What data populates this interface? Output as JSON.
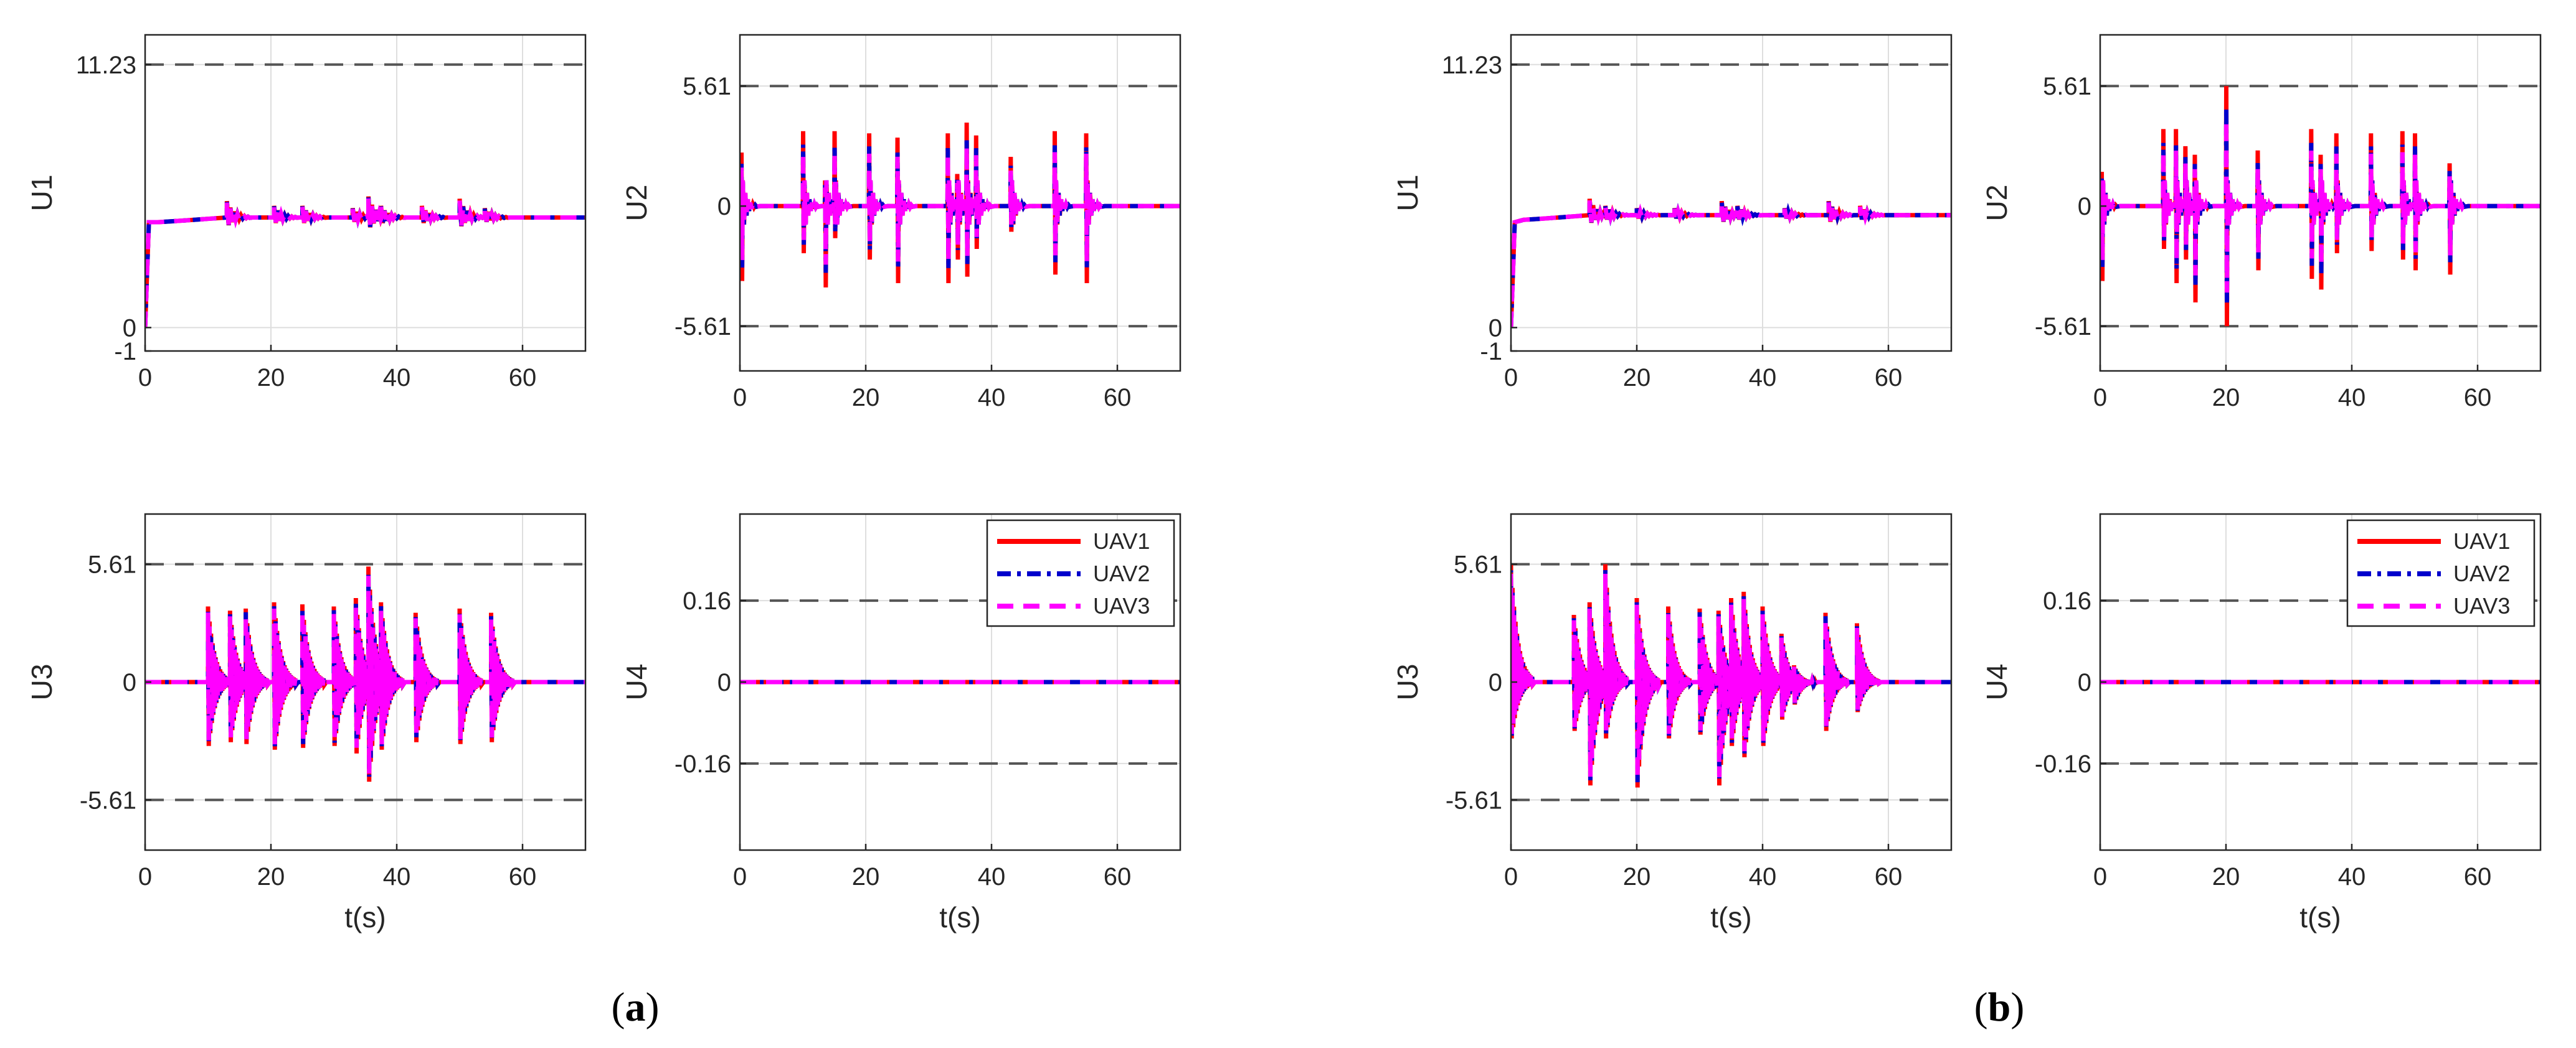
{
  "figure": {
    "panel_labels": [
      {
        "text": "(a)",
        "bold": "a"
      },
      {
        "text": "(b)",
        "bold": "b"
      }
    ],
    "colors": {
      "UAV1": "#ff0000",
      "UAV2": "#0000cc",
      "UAV3": "#ff00ff",
      "bound": "#555555",
      "grid": "#dedede",
      "axis": "#262626"
    }
  },
  "chart_data": [
    {
      "id": "a-U1",
      "type": "line",
      "group": "a",
      "ylabel": "U1",
      "xlabel": "",
      "xlim": [
        0,
        70
      ],
      "ylim": [
        -1,
        12.5
      ],
      "xticks": [
        0,
        20,
        40,
        60
      ],
      "yticks": [
        -1,
        0,
        11.23
      ],
      "bounds": [
        11.23
      ],
      "series": [
        {
          "name": "UAV1"
        },
        {
          "name": "UAV2"
        },
        {
          "name": "UAV3"
        }
      ],
      "baseline": 4.7,
      "start": {
        "from": 0,
        "to": 4.5
      },
      "events": [
        [
          13,
          0.7
        ],
        [
          20.5,
          0.5
        ],
        [
          25,
          0.5
        ],
        [
          33,
          0.4
        ],
        [
          35.5,
          0.9
        ],
        [
          37.5,
          0.5
        ],
        [
          44,
          0.5
        ],
        [
          50,
          0.8
        ],
        [
          54,
          0.4
        ]
      ]
    },
    {
      "id": "a-U2",
      "type": "line",
      "group": "a",
      "ylabel": "U2",
      "xlabel": "",
      "xlim": [
        0,
        70
      ],
      "ylim": [
        -7.7,
        8
      ],
      "xticks": [
        0,
        20,
        40,
        60
      ],
      "yticks": [
        -5.61,
        0,
        5.61
      ],
      "bounds": [
        5.61,
        -5.61
      ],
      "series": [
        {
          "name": "UAV1"
        },
        {
          "name": "UAV2"
        },
        {
          "name": "UAV3"
        }
      ],
      "baseline": 0,
      "spikes": [
        [
          0.2,
          2.5,
          -3.5
        ],
        [
          10,
          3.5,
          -2.2
        ],
        [
          13.5,
          1.2,
          -3.8
        ],
        [
          15,
          3.5,
          -1.5
        ],
        [
          20.5,
          3.4,
          -2.5
        ],
        [
          25,
          3.2,
          -3.6
        ],
        [
          33,
          3.4,
          -3.6
        ],
        [
          34.5,
          1.5,
          -2.5
        ],
        [
          36,
          3.9,
          -3.3
        ],
        [
          37.5,
          3.3,
          -2.0
        ],
        [
          43,
          2.3,
          -1.2
        ],
        [
          50,
          3.5,
          -3.2
        ],
        [
          55,
          3.4,
          -3.6
        ]
      ]
    },
    {
      "id": "a-U3",
      "type": "line",
      "group": "a",
      "ylabel": "U3",
      "xlabel": "t(s)",
      "xlim": [
        0,
        70
      ],
      "ylim": [
        -8,
        8
      ],
      "xticks": [
        0,
        20,
        40,
        60
      ],
      "yticks": [
        -5.61,
        0,
        5.61
      ],
      "bounds": [
        5.61,
        -5.61
      ],
      "series": [
        {
          "name": "UAV1"
        },
        {
          "name": "UAV2"
        },
        {
          "name": "UAV3"
        }
      ],
      "baseline": 0,
      "bursts": [
        [
          10,
          3.6,
          -3.4
        ],
        [
          13.5,
          3.4,
          -3.2
        ],
        [
          16,
          3.5,
          -3.3
        ],
        [
          20.5,
          3.8,
          -3.6
        ],
        [
          25,
          3.7,
          -3.5
        ],
        [
          30,
          3.6,
          -3.4
        ],
        [
          33.5,
          4.0,
          -3.8
        ],
        [
          35.5,
          5.5,
          -5.3
        ],
        [
          37.5,
          3.8,
          -3.6
        ],
        [
          43,
          3.3,
          -3.2
        ],
        [
          50,
          3.5,
          -3.3
        ],
        [
          55,
          3.3,
          -3.2
        ]
      ]
    },
    {
      "id": "a-U4",
      "type": "line",
      "group": "a",
      "ylabel": "U4",
      "xlabel": "t(s)",
      "xlim": [
        0,
        70
      ],
      "ylim": [
        -0.33,
        0.33
      ],
      "xticks": [
        0,
        20,
        40,
        60
      ],
      "yticks": [
        -0.16,
        0,
        0.16
      ],
      "bounds": [
        0.16,
        -0.16
      ],
      "series": [
        {
          "name": "UAV1"
        },
        {
          "name": "UAV2"
        },
        {
          "name": "UAV3"
        }
      ],
      "baseline": 0,
      "legend": "top-right"
    },
    {
      "id": "b-U1",
      "type": "line",
      "group": "b",
      "ylabel": "U1",
      "xlabel": "",
      "xlim": [
        0,
        70
      ],
      "ylim": [
        -1,
        12.5
      ],
      "xticks": [
        0,
        20,
        40,
        60
      ],
      "yticks": [
        -1,
        0,
        11.23
      ],
      "bounds": [
        11.23
      ],
      "series": [
        {
          "name": "UAV1"
        },
        {
          "name": "UAV2"
        },
        {
          "name": "UAV3"
        }
      ],
      "baseline": 4.8,
      "start": {
        "from": 0,
        "to": 4.5
      },
      "events": [
        [
          12.5,
          0.7
        ],
        [
          15,
          0.4
        ],
        [
          20,
          0.3
        ],
        [
          26,
          0.3
        ],
        [
          33.5,
          0.6
        ],
        [
          36,
          0.4
        ],
        [
          43.5,
          0.3
        ],
        [
          50.5,
          0.6
        ],
        [
          55.5,
          0.4
        ]
      ]
    },
    {
      "id": "b-U2",
      "type": "line",
      "group": "b",
      "ylabel": "U2",
      "xlabel": "",
      "xlim": [
        0,
        70
      ],
      "ylim": [
        -7.7,
        8
      ],
      "xticks": [
        0,
        20,
        40,
        60
      ],
      "yticks": [
        -5.61,
        0,
        5.61
      ],
      "bounds": [
        5.61,
        -5.61
      ],
      "series": [
        {
          "name": "UAV1"
        },
        {
          "name": "UAV2"
        },
        {
          "name": "UAV3"
        }
      ],
      "baseline": 0,
      "spikes": [
        [
          0.2,
          1.6,
          -3.5
        ],
        [
          10,
          3.6,
          -2.0
        ],
        [
          12,
          3.6,
          -3.6
        ],
        [
          13.5,
          2.8,
          -2.5
        ],
        [
          15,
          2.4,
          -4.5
        ],
        [
          20,
          5.61,
          -5.61
        ],
        [
          25,
          2.6,
          -3.0
        ],
        [
          33.5,
          3.6,
          -3.4
        ],
        [
          35,
          2.4,
          -3.9
        ],
        [
          37.5,
          3.4,
          -2.2
        ],
        [
          43,
          3.4,
          -2.1
        ],
        [
          48,
          3.5,
          -2.5
        ],
        [
          50,
          3.4,
          -3.0
        ],
        [
          55.5,
          2.0,
          -3.2
        ]
      ]
    },
    {
      "id": "b-U3",
      "type": "line",
      "group": "b",
      "ylabel": "U3",
      "xlabel": "t(s)",
      "xlim": [
        0,
        70
      ],
      "ylim": [
        -8,
        8
      ],
      "xticks": [
        0,
        20,
        40,
        60
      ],
      "yticks": [
        -5.61,
        0,
        5.61
      ],
      "bounds": [
        5.61,
        -5.61
      ],
      "series": [
        {
          "name": "UAV1"
        },
        {
          "name": "UAV2"
        },
        {
          "name": "UAV3"
        }
      ],
      "baseline": 0,
      "bursts": [
        [
          0,
          5.6,
          -3.0
        ],
        [
          10,
          3.2,
          -2.6
        ],
        [
          12.5,
          3.8,
          -5.5
        ],
        [
          15,
          5.61,
          -3.0
        ],
        [
          20,
          4.0,
          -5.61
        ],
        [
          25,
          3.6,
          -3.0
        ],
        [
          30,
          3.5,
          -2.8
        ],
        [
          33,
          3.4,
          -5.5
        ],
        [
          35,
          4.0,
          -3.4
        ],
        [
          37,
          4.3,
          -4.0
        ],
        [
          40,
          3.6,
          -3.4
        ],
        [
          43,
          2.3,
          -2.0
        ],
        [
          45,
          0.8,
          -1.2
        ],
        [
          50,
          3.3,
          -2.6
        ],
        [
          55,
          2.8,
          -1.6
        ]
      ]
    },
    {
      "id": "b-U4",
      "type": "line",
      "group": "b",
      "ylabel": "U4",
      "xlabel": "t(s)",
      "xlim": [
        0,
        70
      ],
      "ylim": [
        -0.33,
        0.33
      ],
      "xticks": [
        0,
        20,
        40,
        60
      ],
      "yticks": [
        -0.16,
        0,
        0.16
      ],
      "bounds": [
        0.16,
        -0.16
      ],
      "series": [
        {
          "name": "UAV1"
        },
        {
          "name": "UAV2"
        },
        {
          "name": "UAV3"
        }
      ],
      "baseline": 0,
      "legend": "top-right"
    }
  ]
}
